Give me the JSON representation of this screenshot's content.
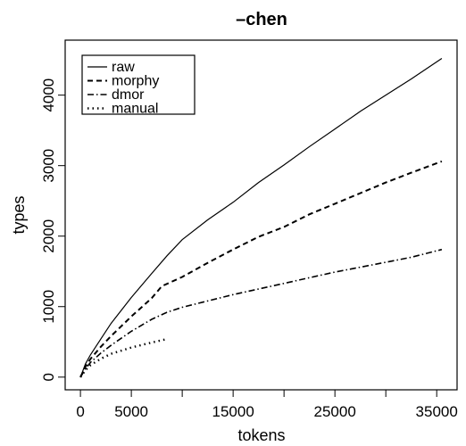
{
  "chart_data": {
    "type": "line",
    "title": "–chen",
    "xlabel": "tokens",
    "ylabel": "types",
    "xlim": [
      -1500,
      37000
    ],
    "ylim": [
      -180,
      4780
    ],
    "x_ticks": [
      0,
      5000,
      10000,
      15000,
      20000,
      25000,
      30000,
      35000
    ],
    "x_tick_labels": [
      "0",
      "5000",
      "",
      "15000",
      "",
      "25000",
      "",
      "35000"
    ],
    "y_ticks": [
      0,
      1000,
      2000,
      3000,
      4000
    ],
    "y_tick_labels": [
      "0",
      "1000",
      "2000",
      "3000",
      "4000"
    ],
    "grid": false,
    "legend": {
      "position": "top-left"
    },
    "series": [
      {
        "name": "raw",
        "style": "solid",
        "x": [
          0,
          500,
          1000,
          2000,
          3000,
          5000,
          7000,
          8500,
          10000,
          12500,
          15000,
          17500,
          20000,
          22500,
          25000,
          27500,
          30000,
          32500,
          35500
        ],
        "y": [
          0,
          190,
          320,
          540,
          760,
          1130,
          1470,
          1720,
          1950,
          2230,
          2480,
          2760,
          3010,
          3270,
          3520,
          3770,
          4000,
          4230,
          4520
        ]
      },
      {
        "name": "morphy",
        "style": "dashed",
        "x": [
          0,
          500,
          1000,
          2000,
          3000,
          5000,
          7000,
          8000,
          10000,
          12500,
          15000,
          17500,
          20000,
          22500,
          25000,
          27500,
          30000,
          32500,
          35500
        ],
        "y": [
          0,
          150,
          260,
          430,
          580,
          860,
          1120,
          1290,
          1420,
          1620,
          1810,
          1990,
          2130,
          2310,
          2460,
          2610,
          2760,
          2900,
          3060
        ]
      },
      {
        "name": "dmor",
        "style": "dashdot",
        "x": [
          0,
          500,
          1000,
          2000,
          3000,
          5000,
          7000,
          8500,
          10000,
          12500,
          15000,
          17500,
          20000,
          22500,
          25000,
          27500,
          30000,
          32500,
          35500
        ],
        "y": [
          0,
          120,
          210,
          340,
          450,
          650,
          820,
          920,
          990,
          1080,
          1170,
          1250,
          1330,
          1410,
          1490,
          1560,
          1630,
          1700,
          1810
        ]
      },
      {
        "name": "manual",
        "style": "dotted",
        "x": [
          0,
          500,
          1000,
          2000,
          3000,
          5000,
          7000,
          8500
        ],
        "y": [
          0,
          100,
          170,
          260,
          330,
          420,
          490,
          540
        ]
      }
    ]
  }
}
